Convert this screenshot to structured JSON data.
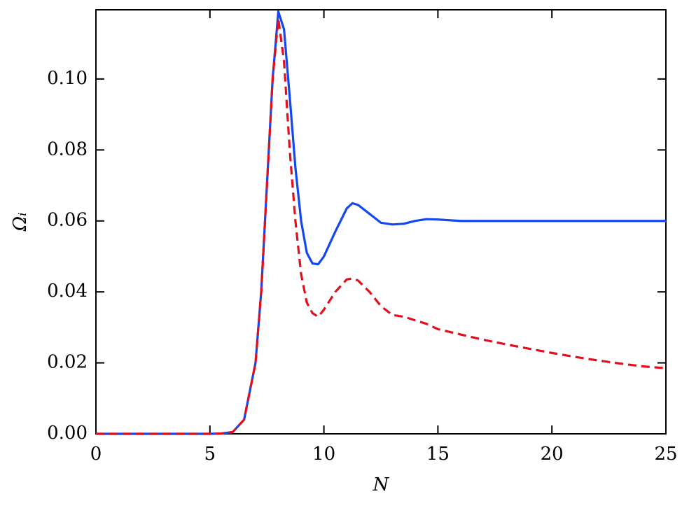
{
  "chart_data": {
    "type": "line",
    "x_label": "N",
    "y_label": "Ωᵢ",
    "x": [
      0,
      1,
      2,
      3,
      4,
      5,
      5.5,
      6,
      6.5,
      7,
      7.25,
      7.5,
      7.75,
      8,
      8.25,
      8.5,
      8.75,
      9,
      9.25,
      9.5,
      9.75,
      10,
      10.5,
      11,
      11.25,
      11.5,
      12,
      12.5,
      13,
      13.5,
      14,
      14.5,
      15,
      16,
      17,
      18,
      19,
      20,
      21,
      22,
      23,
      24,
      25
    ],
    "series": [
      {
        "color": "#1446f2",
        "linestyle": "solid",
        "values": [
          0,
          0,
          0,
          0,
          0,
          0,
          0.0001,
          0.0005,
          0.004,
          0.02,
          0.04,
          0.07,
          0.1,
          0.119,
          0.114,
          0.095,
          0.075,
          0.06,
          0.051,
          0.048,
          0.0478,
          0.05,
          0.057,
          0.0635,
          0.065,
          0.0645,
          0.062,
          0.0595,
          0.059,
          0.0592,
          0.06,
          0.0605,
          0.0604,
          0.06,
          0.06,
          0.06,
          0.06,
          0.06,
          0.06,
          0.06,
          0.06,
          0.06,
          0.06
        ]
      },
      {
        "color": "#e0101e",
        "linestyle": "dashed",
        "values": [
          0,
          0,
          0,
          0,
          0,
          0,
          0.0001,
          0.0005,
          0.004,
          0.02,
          0.04,
          0.07,
          0.1,
          0.117,
          0.105,
          0.08,
          0.06,
          0.045,
          0.037,
          0.034,
          0.033,
          0.035,
          0.04,
          0.0435,
          0.0438,
          0.0432,
          0.04,
          0.036,
          0.0335,
          0.033,
          0.032,
          0.031,
          0.0295,
          0.028,
          0.0265,
          0.0252,
          0.024,
          0.0228,
          0.0217,
          0.0207,
          0.0198,
          0.019,
          0.0185
        ]
      }
    ],
    "xlim": [
      0,
      25
    ],
    "xticks": [
      0,
      5,
      10,
      15,
      20,
      25
    ],
    "ylim": [
      0,
      0.1195
    ],
    "yticks": [
      {
        "value": 0,
        "label": "0.00"
      },
      0.02,
      0.04,
      0.06,
      0.08,
      {
        "value": 0.1,
        "label": "0.10"
      }
    ],
    "grid": false
  }
}
